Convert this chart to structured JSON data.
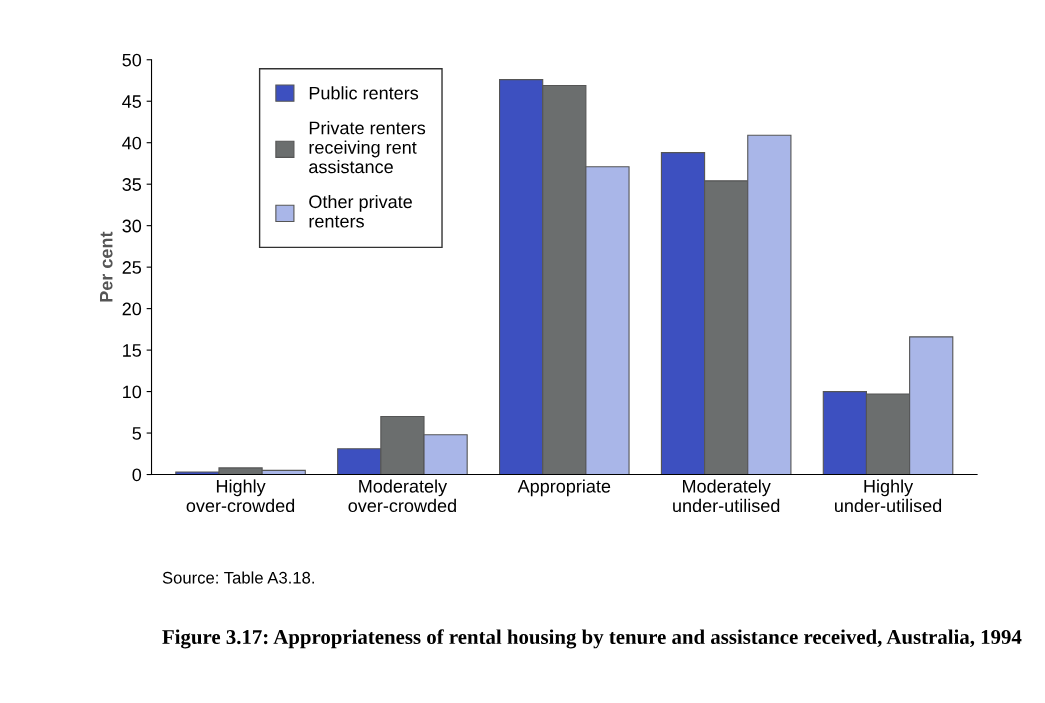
{
  "chart_data": {
    "type": "bar",
    "title": "Figure 3.17: Appropriateness of rental housing by tenure and assistance received, Australia, 1994",
    "ylabel": "Per cent",
    "categories": [
      "Highly\nover-crowded",
      "Moderately\nover-crowded",
      "Appropriate",
      "Moderately\nunder-utilised",
      "Highly\nunder-utilised"
    ],
    "series": [
      {
        "name": "Public renters",
        "color": "#3d50c0",
        "values": [
          0.3,
          3.1,
          47.6,
          38.8,
          10.0
        ]
      },
      {
        "name": "Private renters\nreceiving rent\nassistance",
        "color": "#6b6e6e",
        "values": [
          0.8,
          7.0,
          46.9,
          35.4,
          9.7
        ]
      },
      {
        "name": "Other private\nrenters",
        "color": "#a9b6e8",
        "values": [
          0.5,
          4.8,
          37.1,
          40.9,
          16.6
        ]
      }
    ],
    "ylim": [
      0,
      50
    ],
    "yticks": [
      0,
      5,
      10,
      15,
      20,
      25,
      30,
      35,
      40,
      45,
      50
    ],
    "legend": "top left",
    "grid": false,
    "annotations": [
      "Source: Table A3.18."
    ]
  }
}
